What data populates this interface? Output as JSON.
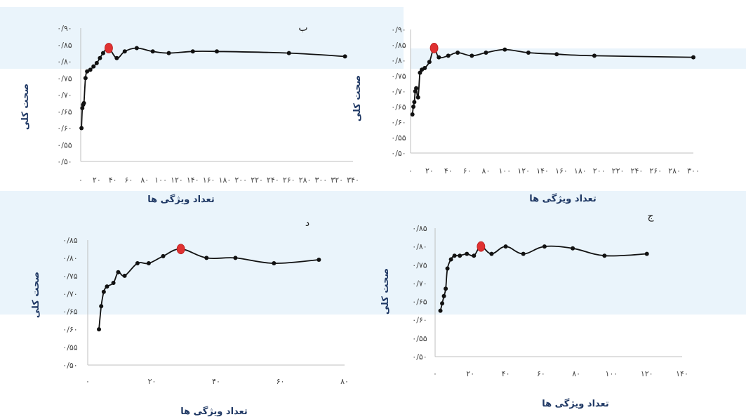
{
  "chart_data": [
    {
      "type": "line",
      "panel_label": "ب",
      "xlabel": "تعداد ویژگی ها",
      "ylabel": "صحت کلی",
      "ylim": [
        0.5,
        0.9
      ],
      "xlim": [
        0,
        340
      ],
      "yticks": [
        "۰/۵۰",
        "۰/۵۵",
        "۰/۶۰",
        "۰/۶۵",
        "۰/۷۰",
        "۰/۷۵",
        "۰/۸۰",
        "۰/۸۵",
        "۰/۹۰"
      ],
      "xticks": [
        "۰",
        "۲۰",
        "۴۰",
        "۶۰",
        "۸۰",
        "۱۰۰",
        "۱۲۰",
        "۱۴۰",
        "۱۶۰",
        "۱۸۰",
        "۲۰۰",
        "۲۲۰",
        "۲۴۰",
        "۲۶۰",
        "۲۸۰",
        "۳۰۰",
        "۳۲۰",
        "۳۴۰"
      ],
      "x": [
        1,
        2,
        3,
        4,
        6,
        8,
        12,
        16,
        20,
        24,
        28,
        35,
        45,
        55,
        70,
        90,
        110,
        140,
        170,
        260,
        330
      ],
      "y": [
        0.6,
        0.66,
        0.67,
        0.675,
        0.75,
        0.77,
        0.775,
        0.785,
        0.795,
        0.81,
        0.825,
        0.84,
        0.81,
        0.83,
        0.84,
        0.83,
        0.825,
        0.83,
        0.83,
        0.825,
        0.815
      ],
      "highlight": {
        "x": 35,
        "y": 0.84
      }
    },
    {
      "type": "line",
      "panel_label": "",
      "xlabel": "تعداد ویژگی ها",
      "ylabel": "صحت کلی",
      "ylim": [
        0.5,
        0.9
      ],
      "xlim": [
        0,
        300
      ],
      "yticks": [
        "۰/۵۰",
        "۰/۵۵",
        "۰/۶۰",
        "۰/۶۵",
        "۰/۷۰",
        "۰/۷۵",
        "۰/۸۰",
        "۰/۸۵",
        "۰/۹۰"
      ],
      "xticks": [
        "۰",
        "۲۰",
        "۴۰",
        "۶۰",
        "۸۰",
        "۱۰۰",
        "۱۲۰",
        "۱۴۰",
        "۱۶۰",
        "۱۸۰",
        "۲۰۰",
        "۲۲۰",
        "۲۴۰",
        "۲۶۰",
        "۲۸۰",
        "۳۰۰"
      ],
      "x": [
        2,
        3,
        4,
        5,
        6,
        8,
        10,
        12,
        15,
        20,
        25,
        30,
        40,
        50,
        65,
        80,
        100,
        125,
        155,
        195,
        300
      ],
      "y": [
        0.625,
        0.65,
        0.665,
        0.7,
        0.71,
        0.68,
        0.76,
        0.77,
        0.775,
        0.795,
        0.84,
        0.81,
        0.815,
        0.825,
        0.815,
        0.825,
        0.835,
        0.825,
        0.82,
        0.815,
        0.81
      ],
      "highlight": {
        "x": 25,
        "y": 0.84
      }
    },
    {
      "type": "line",
      "panel_label": "د",
      "xlabel": "تعداد ویژگی ها",
      "ylabel": "صحت کلی",
      "ylim": [
        0.5,
        0.85
      ],
      "xlim": [
        0,
        80
      ],
      "yticks": [
        "۰/۵۰",
        "۰/۵۵",
        "۰/۶۰",
        "۰/۶۵",
        "۰/۷۰",
        "۰/۷۵",
        "۰/۸۰",
        "۰/۸۵"
      ],
      "xticks": [
        "۰",
        "۲۰",
        "۴۰",
        "۶۰",
        "۸۰"
      ],
      "x": [
        3.5,
        4.2,
        5,
        6,
        8,
        9.5,
        11.5,
        15.5,
        19,
        23.5,
        29,
        37,
        46,
        58,
        72
      ],
      "y": [
        0.6,
        0.665,
        0.705,
        0.72,
        0.73,
        0.76,
        0.75,
        0.785,
        0.785,
        0.805,
        0.825,
        0.8,
        0.8,
        0.785,
        0.795
      ],
      "highlight": {
        "x": 29,
        "y": 0.825
      }
    },
    {
      "type": "line",
      "panel_label": "ج",
      "xlabel": "تعداد ویژگی ها",
      "ylabel": "صحت کلی",
      "ylim": [
        0.5,
        0.85
      ],
      "xlim": [
        0,
        140
      ],
      "yticks": [
        "۰/۵۰",
        "۰/۵۵",
        "۰/۶۰",
        "۰/۶۵",
        "۰/۷۰",
        "۰/۷۵",
        "۰/۸۰",
        "۰/۸۵"
      ],
      "xticks": [
        "۰",
        "۲۰",
        "۴۰",
        "۶۰",
        "۸۰",
        "۱۰۰",
        "۱۲۰",
        "۱۴۰"
      ],
      "x": [
        3,
        4,
        5,
        6,
        7,
        9,
        11,
        14,
        18,
        22,
        26,
        32,
        40,
        50,
        62,
        78,
        96,
        120
      ],
      "y": [
        0.625,
        0.645,
        0.665,
        0.685,
        0.74,
        0.765,
        0.775,
        0.775,
        0.78,
        0.775,
        0.8,
        0.78,
        0.8,
        0.78,
        0.8,
        0.795,
        0.775,
        0.78
      ],
      "highlight": {
        "x": 26,
        "y": 0.8
      }
    }
  ]
}
